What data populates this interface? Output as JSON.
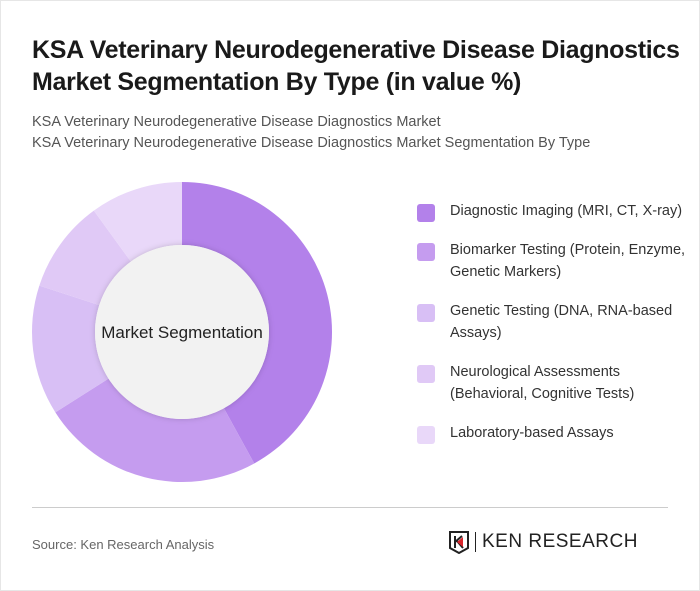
{
  "title": "KSA Veterinary Neurodegenerative Disease Diagnostics Market Segmentation By Type (in value %)",
  "subtitles": [
    "KSA Veterinary Neurodegenerative Disease Diagnostics Market",
    "KSA Veterinary Neurodegenerative Disease Diagnostics Market Segmentation By Type"
  ],
  "source": "Source: Ken Research Analysis",
  "logo_text": "KEN RESEARCH",
  "chart_data": {
    "type": "pie",
    "donut": true,
    "center_label": "Market Segmentation",
    "legend_position": "right",
    "categories": [
      "Diagnostic Imaging (MRI, CT, X-ray)",
      "Biomarker Testing (Protein, Enzyme, Genetic Markers)",
      "Genetic Testing (DNA, RNA-based Assays)",
      "Neurological Assessments (Behavioral, Cognitive Tests)",
      "Laboratory-based Assays"
    ],
    "values": [
      42,
      24,
      14,
      10,
      10
    ],
    "colors": [
      "#b381ea",
      "#c59cef",
      "#d8bff5",
      "#e0c9f6",
      "#e9d8f9"
    ]
  }
}
